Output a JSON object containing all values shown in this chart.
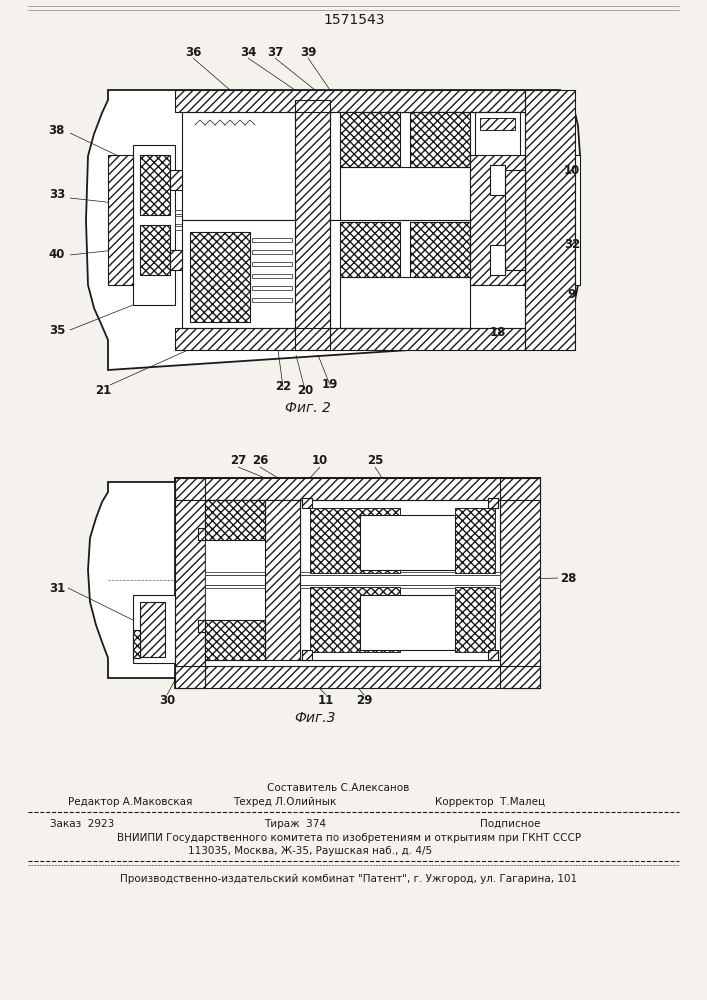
{
  "patent_number": "1571543",
  "fig2_label": "Фиг. 2",
  "fig3_label": "Фиг.3",
  "footer_sostavitel": "Составитель С.Алексанов",
  "footer_redaktor": "Редактор А.Маковская",
  "footer_tekhred": "Техред Л.Олийнык",
  "footer_korrektor": "Корректор  Т.Малец",
  "footer_zakaz": "Заказ  2923",
  "footer_tirazh": "Тираж  374",
  "footer_podpisnoe": "Подписное",
  "footer_vniip1": "ВНИИПИ Государственного комитета по изобретениям и открытиям при ГКНТ СССР",
  "footer_vniip2": "113035, Москва, Ж-35, Раушская наб., д. 4/5",
  "footer_proizv": "Производственно-издательский комбинат \"Патент\", г. Ужгород, ул. Гагарина, 101",
  "bg_color": "#f5f2ee",
  "line_color": "#1a1a1a"
}
